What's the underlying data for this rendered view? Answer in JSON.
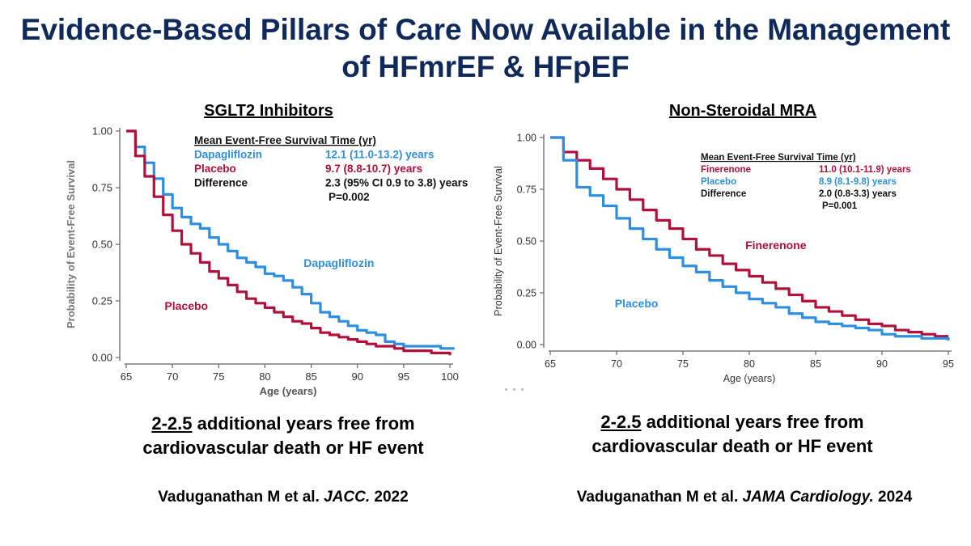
{
  "title": {
    "line1": "Evidence-Based Pillars of Care Now Available in the Management",
    "line2": "of HFmrEF & HFpEF"
  },
  "left": {
    "heading": "SGLT2 Inhibitors",
    "caption_highlight": "2-2.5",
    "caption_line1_rest": " additional years free from",
    "caption_line2": "cardiovascular death or HF event",
    "cite_pre": "Vaduganathan M et al. ",
    "cite_journal": "JACC.",
    "cite_year": " 2022"
  },
  "right": {
    "heading": "Non-Steroidal MRA",
    "caption_highlight": "2-2.5",
    "caption_line1_rest": " additional years free from",
    "caption_line2": "cardiovascular death or HF event",
    "cite_pre": "Vaduganathan M et al. ",
    "cite_journal": "JAMA Cardiology.",
    "cite_year": " 2024"
  },
  "colors": {
    "blue": "#2e8fe0",
    "red": "#b0103a",
    "axis": "#666666",
    "title": "#0f2a5a"
  },
  "chart_data": [
    {
      "type": "line",
      "title": "SGLT2 Inhibitors",
      "xlabel": "Age (years)",
      "ylabel": "Probability of Event-Free Survival",
      "xlim": [
        65,
        100
      ],
      "ylim": [
        0,
        1
      ],
      "xticks": [
        65,
        70,
        75,
        80,
        85,
        90,
        95,
        100
      ],
      "yticks": [
        "0.00",
        "0.25",
        "0.50",
        "0.75",
        "1.00"
      ],
      "series": [
        {
          "name": "Dapagliflozin",
          "color": "#2e8fe0",
          "x": [
            65,
            66,
            67,
            68,
            69,
            70,
            71,
            72,
            73,
            74,
            75,
            76,
            77,
            78,
            79,
            80,
            81,
            82,
            83,
            84,
            85,
            86,
            87,
            88,
            89,
            90,
            91,
            92,
            93,
            94,
            95,
            96,
            97,
            98,
            99,
            100,
            100.5
          ],
          "y": [
            1.0,
            0.93,
            0.86,
            0.79,
            0.72,
            0.66,
            0.62,
            0.59,
            0.57,
            0.53,
            0.5,
            0.47,
            0.44,
            0.42,
            0.4,
            0.37,
            0.36,
            0.34,
            0.31,
            0.28,
            0.24,
            0.2,
            0.18,
            0.16,
            0.14,
            0.12,
            0.11,
            0.1,
            0.07,
            0.06,
            0.05,
            0.05,
            0.05,
            0.05,
            0.04,
            0.04,
            0.04
          ]
        },
        {
          "name": "Placebo",
          "color": "#b0103a",
          "x": [
            65,
            66,
            67,
            68,
            69,
            70,
            71,
            72,
            73,
            74,
            75,
            76,
            77,
            78,
            79,
            80,
            81,
            82,
            83,
            84,
            85,
            86,
            87,
            88,
            89,
            90,
            91,
            92,
            93,
            94,
            95,
            96,
            97,
            98,
            99,
            100
          ],
          "y": [
            1.0,
            0.89,
            0.8,
            0.71,
            0.63,
            0.56,
            0.5,
            0.46,
            0.42,
            0.38,
            0.35,
            0.32,
            0.29,
            0.26,
            0.24,
            0.22,
            0.2,
            0.18,
            0.16,
            0.15,
            0.13,
            0.11,
            0.1,
            0.09,
            0.08,
            0.07,
            0.06,
            0.05,
            0.05,
            0.04,
            0.03,
            0.03,
            0.03,
            0.02,
            0.02,
            0.01
          ]
        }
      ],
      "annotations": [
        {
          "text": "Dapagliflozin",
          "x": 88,
          "y": 0.4,
          "color": "#2e8fe0"
        },
        {
          "text": "Placebo",
          "x": 71.5,
          "y": 0.21,
          "color": "#b0103a"
        }
      ],
      "stats_table": {
        "header": "Mean Event-Free Survival Time (yr)",
        "rows": [
          {
            "label": "Dapagliflozin",
            "value": "12.1 (11.0-13.2) years",
            "color": "#2e8fe0"
          },
          {
            "label": "Placebo",
            "value": "9.7 (8.8-10.7) years",
            "color": "#b0103a"
          },
          {
            "label": "Difference",
            "value": "2.3 (95% CI 0.9 to 3.8) years",
            "color": "#111111"
          },
          {
            "label": "",
            "value": "P=0.002",
            "color": "#111111"
          }
        ]
      }
    },
    {
      "type": "line",
      "title": "Non-Steroidal MRA",
      "xlabel": "Age (years)",
      "ylabel": "Probability of Event-Free Survival",
      "xlim": [
        65,
        95
      ],
      "ylim": [
        0,
        1
      ],
      "xticks": [
        65,
        70,
        75,
        80,
        85,
        90,
        95
      ],
      "yticks": [
        "0.00",
        "0.25",
        "0.50",
        "0.75",
        "1.00"
      ],
      "series": [
        {
          "name": "Finerenone",
          "color": "#b0103a",
          "x": [
            65,
            66,
            67,
            68,
            69,
            70,
            71,
            72,
            73,
            74,
            75,
            76,
            77,
            78,
            79,
            80,
            81,
            82,
            83,
            84,
            85,
            86,
            87,
            88,
            89,
            90,
            91,
            92,
            93,
            94,
            95
          ],
          "y": [
            1.0,
            0.93,
            0.89,
            0.85,
            0.8,
            0.75,
            0.7,
            0.65,
            0.6,
            0.56,
            0.51,
            0.46,
            0.43,
            0.39,
            0.36,
            0.33,
            0.3,
            0.27,
            0.24,
            0.21,
            0.18,
            0.16,
            0.14,
            0.12,
            0.1,
            0.09,
            0.07,
            0.06,
            0.05,
            0.04,
            0.04
          ]
        },
        {
          "name": "Placebo",
          "color": "#2e8fe0",
          "x": [
            65,
            66,
            67,
            68,
            69,
            70,
            71,
            72,
            73,
            74,
            75,
            76,
            77,
            78,
            79,
            80,
            81,
            82,
            83,
            84,
            85,
            86,
            87,
            88,
            89,
            90,
            91,
            92,
            93,
            94,
            95
          ],
          "y": [
            1.0,
            0.89,
            0.76,
            0.72,
            0.67,
            0.61,
            0.56,
            0.51,
            0.46,
            0.42,
            0.38,
            0.35,
            0.31,
            0.28,
            0.25,
            0.22,
            0.2,
            0.18,
            0.15,
            0.13,
            0.11,
            0.1,
            0.09,
            0.08,
            0.07,
            0.05,
            0.04,
            0.04,
            0.03,
            0.03,
            0.02
          ]
        }
      ],
      "annotations": [
        {
          "text": "Finerenone",
          "x": 82,
          "y": 0.46,
          "color": "#b0103a"
        },
        {
          "text": "Placebo",
          "x": 71.5,
          "y": 0.18,
          "color": "#2e8fe0"
        }
      ],
      "stats_table": {
        "header": "Mean Event-Free Survival Time (yr)",
        "rows": [
          {
            "label": "Finerenone",
            "value": "11.0 (10.1-11.9) years",
            "color": "#b0103a"
          },
          {
            "label": "Placebo",
            "value": "8.9 (8.1-9.8) years",
            "color": "#2e8fe0"
          },
          {
            "label": "Difference",
            "value": "2.0 (0.8-3.3) years",
            "color": "#111111"
          },
          {
            "label": "",
            "value": "P=0.001",
            "color": "#111111"
          }
        ]
      }
    }
  ]
}
